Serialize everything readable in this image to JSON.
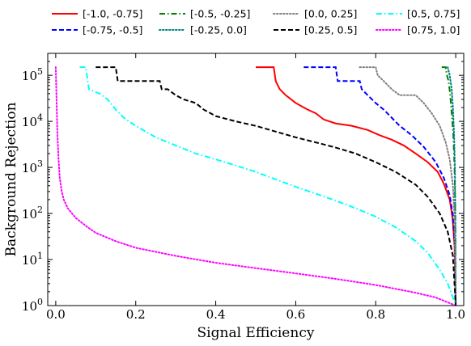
{
  "chart_data": {
    "type": "line",
    "xlabel": "Signal Efficiency",
    "ylabel": "Background Rejection",
    "xlim": [
      -0.02,
      1.02
    ],
    "ylim": [
      1,
      300000
    ],
    "yscale": "log",
    "grid": false,
    "legend_location": "top, outside plot, 4 columns",
    "x_ticks": [
      0.0,
      0.2,
      0.4,
      0.6,
      0.8,
      1.0
    ],
    "x_tick_labels": [
      "0.0",
      "0.2",
      "0.4",
      "0.6",
      "0.8",
      "1.0"
    ],
    "y_ticks": [
      1,
      10,
      100,
      1000,
      10000,
      100000
    ],
    "y_tick_labels": [
      {
        "base": "10",
        "exp": "0"
      },
      {
        "base": "10",
        "exp": "1"
      },
      {
        "base": "10",
        "exp": "2"
      },
      {
        "base": "10",
        "exp": "3"
      },
      {
        "base": "10",
        "exp": "4"
      },
      {
        "base": "10",
        "exp": "5"
      }
    ],
    "series": [
      {
        "name": "[-1.0, -0.75]",
        "color": "#ff0000",
        "dash": "solid",
        "points": [
          [
            0.5,
            150000
          ],
          [
            0.545,
            150000
          ],
          [
            0.55,
            75000
          ],
          [
            0.56,
            50000
          ],
          [
            0.575,
            37000
          ],
          [
            0.6,
            25000
          ],
          [
            0.63,
            18000
          ],
          [
            0.65,
            15000
          ],
          [
            0.67,
            11000
          ],
          [
            0.7,
            9000
          ],
          [
            0.74,
            8000
          ],
          [
            0.78,
            6500
          ],
          [
            0.81,
            5000
          ],
          [
            0.84,
            4000
          ],
          [
            0.87,
            3000
          ],
          [
            0.9,
            2000
          ],
          [
            0.93,
            1300
          ],
          [
            0.955,
            800
          ],
          [
            0.97,
            450
          ],
          [
            0.985,
            200
          ],
          [
            0.992,
            80
          ],
          [
            0.997,
            20
          ],
          [
            1.0,
            1
          ]
        ]
      },
      {
        "name": "[-0.75, -0.5]",
        "color": "#0000ff",
        "dash": "dashed",
        "points": [
          [
            0.62,
            150000
          ],
          [
            0.7,
            150000
          ],
          [
            0.705,
            75000
          ],
          [
            0.76,
            75000
          ],
          [
            0.765,
            50000
          ],
          [
            0.78,
            37000
          ],
          [
            0.8,
            25000
          ],
          [
            0.82,
            18000
          ],
          [
            0.84,
            12000
          ],
          [
            0.86,
            8000
          ],
          [
            0.89,
            5000
          ],
          [
            0.92,
            2800
          ],
          [
            0.95,
            1300
          ],
          [
            0.97,
            600
          ],
          [
            0.985,
            250
          ],
          [
            0.993,
            90
          ],
          [
            0.998,
            20
          ],
          [
            1.0,
            1
          ]
        ]
      },
      {
        "name": "[-0.5, -0.25]",
        "color": "#008000",
        "dash": "dashdot",
        "points": [
          [
            0.965,
            150000
          ],
          [
            0.975,
            150000
          ],
          [
            0.977,
            110000
          ],
          [
            0.982,
            75000
          ],
          [
            0.986,
            40000
          ],
          [
            0.99,
            15000
          ],
          [
            0.994,
            5000
          ],
          [
            0.997,
            1000
          ],
          [
            0.999,
            100
          ],
          [
            1.0,
            1
          ]
        ]
      },
      {
        "name": "[-0.25, 0.0]",
        "color": "#008080",
        "dash": "dotted",
        "points": [
          [
            0.98,
            150000
          ],
          [
            0.985,
            100000
          ],
          [
            0.99,
            50000
          ],
          [
            0.993,
            20000
          ],
          [
            0.996,
            5000
          ],
          [
            0.998,
            1000
          ],
          [
            0.999,
            100
          ],
          [
            1.0,
            1
          ]
        ]
      },
      {
        "name": "[0.0, 0.25]",
        "color": "#808080",
        "dash": "dotted",
        "points": [
          [
            0.76,
            150000
          ],
          [
            0.8,
            150000
          ],
          [
            0.805,
            100000
          ],
          [
            0.82,
            75000
          ],
          [
            0.84,
            50000
          ],
          [
            0.86,
            37000
          ],
          [
            0.9,
            37000
          ],
          [
            0.92,
            25000
          ],
          [
            0.94,
            15000
          ],
          [
            0.96,
            8000
          ],
          [
            0.975,
            3500
          ],
          [
            0.985,
            1500
          ],
          [
            0.993,
            400
          ],
          [
            0.997,
            80
          ],
          [
            1.0,
            1
          ]
        ]
      },
      {
        "name": "[0.25, 0.5]",
        "color": "#000000",
        "dash": "dashed",
        "points": [
          [
            0.1,
            150000
          ],
          [
            0.15,
            150000
          ],
          [
            0.155,
            75000
          ],
          [
            0.26,
            75000
          ],
          [
            0.265,
            50000
          ],
          [
            0.28,
            50000
          ],
          [
            0.3,
            37000
          ],
          [
            0.32,
            30000
          ],
          [
            0.35,
            25000
          ],
          [
            0.37,
            18000
          ],
          [
            0.4,
            13000
          ],
          [
            0.45,
            10000
          ],
          [
            0.5,
            8000
          ],
          [
            0.55,
            6000
          ],
          [
            0.6,
            4500
          ],
          [
            0.65,
            3500
          ],
          [
            0.7,
            2700
          ],
          [
            0.75,
            2000
          ],
          [
            0.8,
            1300
          ],
          [
            0.85,
            800
          ],
          [
            0.9,
            420
          ],
          [
            0.93,
            230
          ],
          [
            0.96,
            100
          ],
          [
            0.98,
            40
          ],
          [
            0.993,
            12
          ],
          [
            1.0,
            1
          ]
        ]
      },
      {
        "name": "[0.5, 0.75]",
        "color": "#00ffff",
        "dash": "dashdot",
        "points": [
          [
            0.06,
            150000
          ],
          [
            0.075,
            150000
          ],
          [
            0.08,
            75000
          ],
          [
            0.083,
            50000
          ],
          [
            0.11,
            40000
          ],
          [
            0.13,
            30000
          ],
          [
            0.15,
            18000
          ],
          [
            0.17,
            12000
          ],
          [
            0.2,
            8000
          ],
          [
            0.25,
            4500
          ],
          [
            0.3,
            3000
          ],
          [
            0.35,
            2000
          ],
          [
            0.4,
            1500
          ],
          [
            0.45,
            1100
          ],
          [
            0.5,
            800
          ],
          [
            0.55,
            550
          ],
          [
            0.6,
            380
          ],
          [
            0.65,
            270
          ],
          [
            0.7,
            190
          ],
          [
            0.75,
            130
          ],
          [
            0.8,
            85
          ],
          [
            0.85,
            50
          ],
          [
            0.9,
            25
          ],
          [
            0.93,
            14
          ],
          [
            0.96,
            6
          ],
          [
            0.98,
            3
          ],
          [
            0.993,
            1.5
          ],
          [
            1.0,
            1
          ]
        ]
      },
      {
        "name": "[0.75, 1.0]",
        "color": "#ff00ff",
        "dash": "dotted",
        "points": [
          [
            0.0,
            150000
          ],
          [
            0.002,
            30000
          ],
          [
            0.004,
            6000
          ],
          [
            0.007,
            1500
          ],
          [
            0.01,
            600
          ],
          [
            0.015,
            300
          ],
          [
            0.02,
            200
          ],
          [
            0.03,
            130
          ],
          [
            0.05,
            80
          ],
          [
            0.08,
            50
          ],
          [
            0.1,
            38
          ],
          [
            0.15,
            25
          ],
          [
            0.2,
            18
          ],
          [
            0.3,
            12
          ],
          [
            0.4,
            8.5
          ],
          [
            0.5,
            6.5
          ],
          [
            0.6,
            5
          ],
          [
            0.7,
            3.8
          ],
          [
            0.8,
            2.8
          ],
          [
            0.9,
            1.9
          ],
          [
            0.95,
            1.5
          ],
          [
            1.0,
            1
          ]
        ]
      }
    ]
  }
}
